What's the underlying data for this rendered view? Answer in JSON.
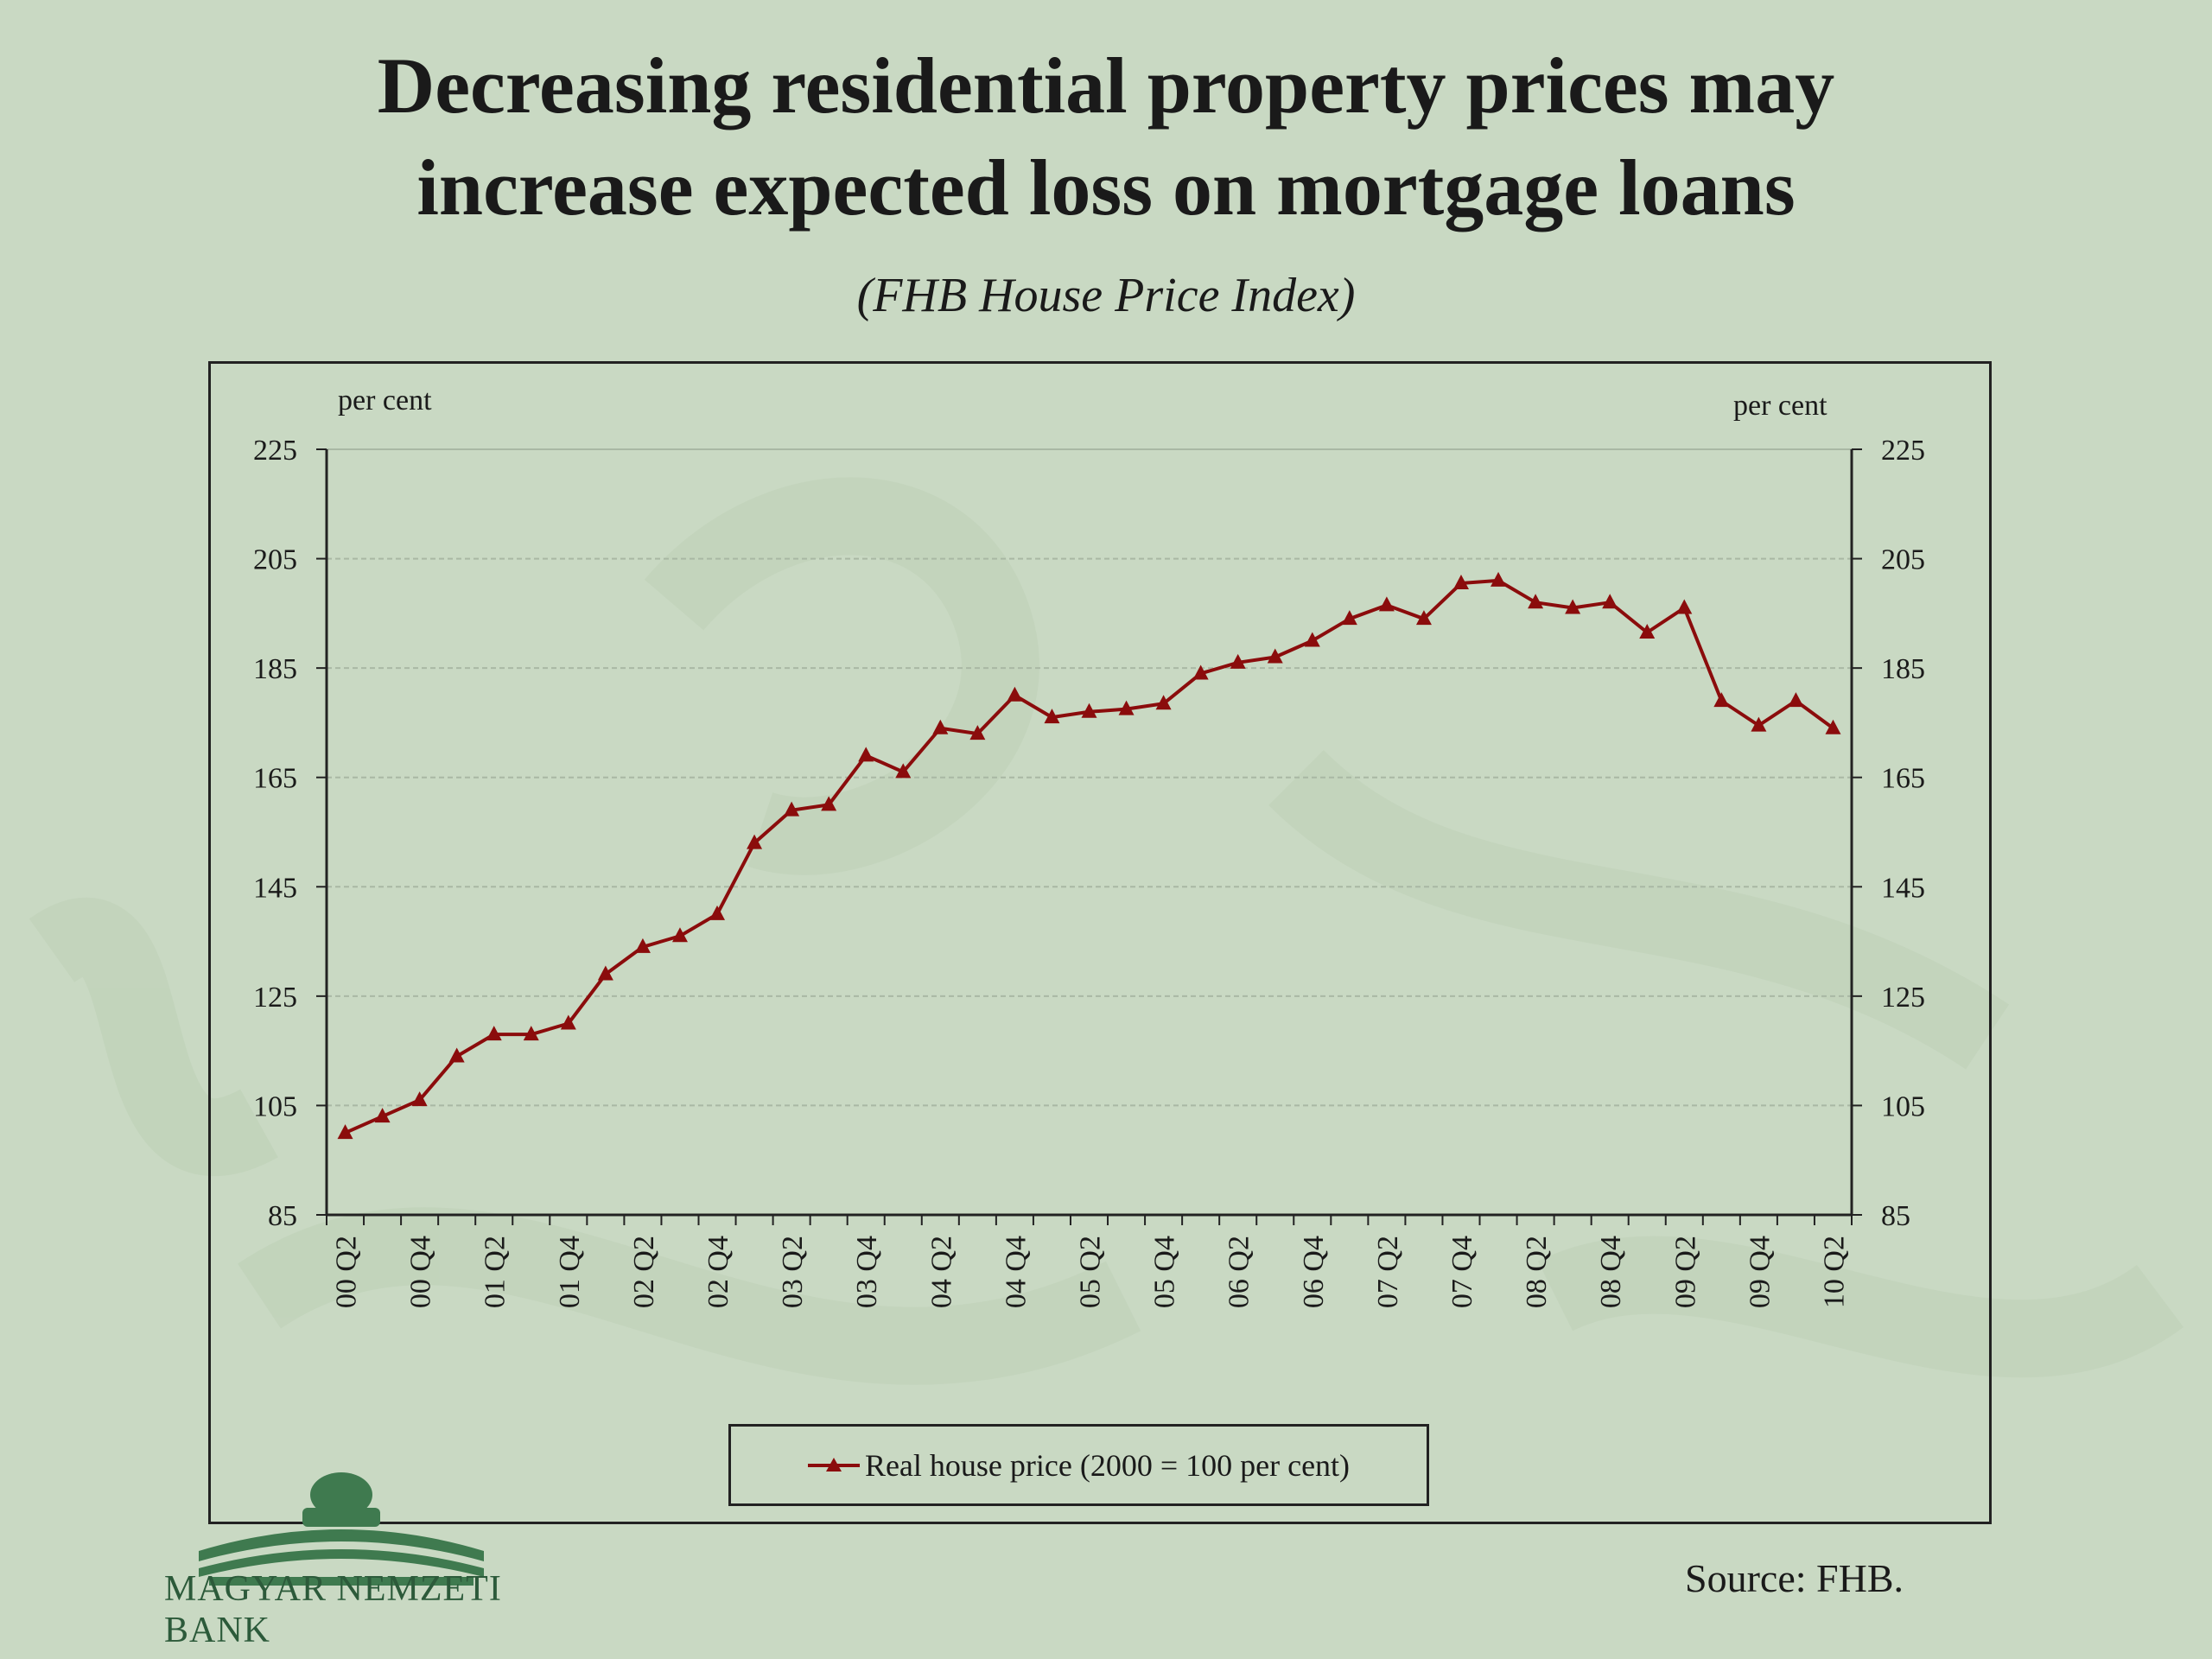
{
  "title_line1": "Decreasing residential property prices may",
  "title_line2": "increase expected loss on mortgage loans",
  "subtitle": "(FHB  House Price Index)",
  "source": "Source: FHB.",
  "logo_text": "MAGYAR NEMZETI BANK",
  "colors": {
    "background": "#c9d9c3",
    "series": "#8b0c0c",
    "grid": "#a9b8a4"
  },
  "chart_data": {
    "type": "line",
    "title": "(FHB  House Price Index)",
    "ylabel_left": "per cent",
    "ylabel_right": "per cent",
    "ylim": [
      85,
      225
    ],
    "yticks": [
      85,
      105,
      125,
      145,
      165,
      185,
      205,
      225
    ],
    "xtick_labels": [
      "00 Q2",
      "00 Q4",
      "01 Q2",
      "01 Q4",
      "02 Q2",
      "02 Q4",
      "03 Q2",
      "03 Q4",
      "04 Q2",
      "04 Q4",
      "05 Q2",
      "05 Q4",
      "06 Q2",
      "06 Q4",
      "07 Q2",
      "07 Q4",
      "08 Q2",
      "08 Q4",
      "09 Q2",
      "09 Q4",
      "10 Q2"
    ],
    "x": [
      "00 Q2",
      "00 Q3",
      "00 Q4",
      "01 Q1",
      "01 Q2",
      "01 Q3",
      "01 Q4",
      "02 Q1",
      "02 Q2",
      "02 Q3",
      "02 Q4",
      "03 Q1",
      "03 Q2",
      "03 Q3",
      "03 Q4",
      "04 Q1",
      "04 Q2",
      "04 Q3",
      "04 Q4",
      "05 Q1",
      "05 Q2",
      "05 Q3",
      "05 Q4",
      "06 Q1",
      "06 Q2",
      "06 Q3",
      "06 Q4",
      "07 Q1",
      "07 Q2",
      "07 Q3",
      "07 Q4",
      "08 Q1",
      "08 Q2",
      "08 Q3",
      "08 Q4",
      "09 Q1",
      "09 Q2",
      "09 Q3",
      "09 Q4",
      "10 Q1",
      "10 Q2"
    ],
    "legend_position": "bottom",
    "grid": true,
    "series": [
      {
        "name": "Real house price (2000 = 100 per cent)",
        "marker": "triangle",
        "values": [
          100,
          103,
          106,
          114,
          118,
          118,
          120,
          129,
          134,
          136,
          140,
          153,
          159,
          160,
          169,
          166,
          174,
          173,
          180,
          176,
          177,
          177.5,
          178.5,
          184,
          186,
          187,
          190,
          194,
          196.5,
          194,
          200.5,
          201,
          197,
          196,
          197,
          191.5,
          196,
          179,
          174.5,
          179,
          174
        ]
      }
    ]
  }
}
